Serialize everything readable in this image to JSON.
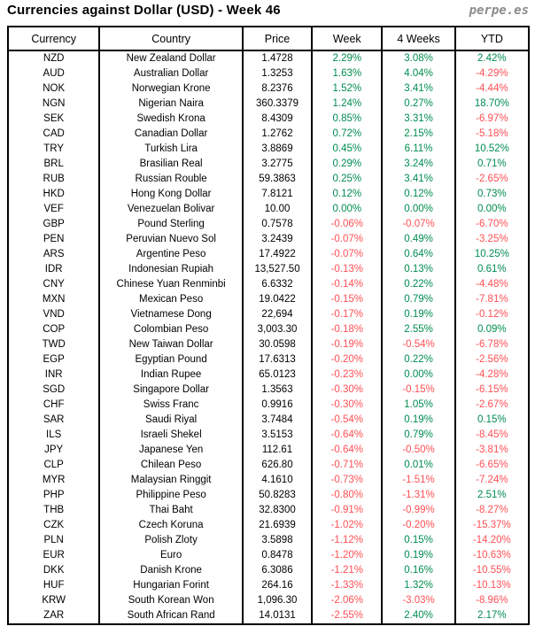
{
  "header": {
    "title": "Currencies against Dollar (USD) - Week 46",
    "logo": "perpe.es"
  },
  "colors": {
    "positive": "#008c50",
    "negative": "#ff5055",
    "text": "#000000",
    "border": "#000000",
    "logo": "#8c8c8c"
  },
  "chart_data": {
    "type": "table",
    "title": "Currencies against Dollar (USD) - Week 46",
    "columns": [
      "Currency",
      "Country",
      "Price",
      "Week",
      "4 Weeks",
      "YTD"
    ],
    "rows": [
      [
        "NZD",
        "New Zealand Dollar",
        "1.4728",
        "2.29%",
        "3.08%",
        "2.42%"
      ],
      [
        "AUD",
        "Australian Dollar",
        "1.3253",
        "1.63%",
        "4.04%",
        "-4.29%"
      ],
      [
        "NOK",
        "Norwegian Krone",
        "8.2376",
        "1.52%",
        "3.41%",
        "-4.44%"
      ],
      [
        "NGN",
        "Nigerian Naira",
        "360.3379",
        "1.24%",
        "0.27%",
        "18.70%"
      ],
      [
        "SEK",
        "Swedish Krona",
        "8.4309",
        "0.85%",
        "3.31%",
        "-6.97%"
      ],
      [
        "CAD",
        "Canadian Dollar",
        "1.2762",
        "0.72%",
        "2.15%",
        "-5.18%"
      ],
      [
        "TRY",
        "Turkish Lira",
        "3.8869",
        "0.45%",
        "6.11%",
        "10.52%"
      ],
      [
        "BRL",
        "Brasilian Real",
        "3.2775",
        "0.29%",
        "3.24%",
        "0.71%"
      ],
      [
        "RUB",
        "Russian Rouble",
        "59.3863",
        "0.25%",
        "3.41%",
        "-2.65%"
      ],
      [
        "HKD",
        "Hong Kong Dollar",
        "7.8121",
        "0.12%",
        "0.12%",
        "0.73%"
      ],
      [
        "VEF",
        "Venezuelan Bolivar",
        "10.00",
        "0.00%",
        "0.00%",
        "0.00%"
      ],
      [
        "GBP",
        "Pound Sterling",
        "0.7578",
        "-0.06%",
        "-0.07%",
        "-6.70%"
      ],
      [
        "PEN",
        "Peruvian Nuevo Sol",
        "3.2439",
        "-0.07%",
        "0.49%",
        "-3.25%"
      ],
      [
        "ARS",
        "Argentine Peso",
        "17.4922",
        "-0.07%",
        "0.64%",
        "10.25%"
      ],
      [
        "IDR",
        "Indonesian Rupiah",
        "13,527.50",
        "-0.13%",
        "0.13%",
        "0.61%"
      ],
      [
        "CNY",
        "Chinese Yuan Renminbi",
        "6.6332",
        "-0.14%",
        "0.22%",
        "-4.48%"
      ],
      [
        "MXN",
        "Mexican Peso",
        "19.0422",
        "-0.15%",
        "0.79%",
        "-7.81%"
      ],
      [
        "VND",
        "Vietnamese Dong",
        "22,694",
        "-0.17%",
        "0.19%",
        "-0.12%"
      ],
      [
        "COP",
        "Colombian Peso",
        "3,003.30",
        "-0.18%",
        "2.55%",
        "0.09%"
      ],
      [
        "TWD",
        "New Taiwan Dollar",
        "30.0598",
        "-0.19%",
        "-0.54%",
        "-6.78%"
      ],
      [
        "EGP",
        "Egyptian Pound",
        "17.6313",
        "-0.20%",
        "0.22%",
        "-2.56%"
      ],
      [
        "INR",
        "Indian Rupee",
        "65.0123",
        "-0.23%",
        "0.00%",
        "-4.28%"
      ],
      [
        "SGD",
        "Singapore Dollar",
        "1.3563",
        "-0.30%",
        "-0.15%",
        "-6.15%"
      ],
      [
        "CHF",
        "Swiss Franc",
        "0.9916",
        "-0.30%",
        "1.05%",
        "-2.67%"
      ],
      [
        "SAR",
        "Saudi Riyal",
        "3.7484",
        "-0.54%",
        "0.19%",
        "0.15%"
      ],
      [
        "ILS",
        "Israeli Shekel",
        "3.5153",
        "-0.64%",
        "0.79%",
        "-8.45%"
      ],
      [
        "JPY",
        "Japanese Yen",
        "112.61",
        "-0.64%",
        "-0.50%",
        "-3.81%"
      ],
      [
        "CLP",
        "Chilean Peso",
        "626.80",
        "-0.71%",
        "0.01%",
        "-6.65%"
      ],
      [
        "MYR",
        "Malaysian Ringgit",
        "4.1610",
        "-0.73%",
        "-1.51%",
        "-7.24%"
      ],
      [
        "PHP",
        "Philippine Peso",
        "50.8283",
        "-0.80%",
        "-1.31%",
        "2.51%"
      ],
      [
        "THB",
        "Thai Baht",
        "32.8300",
        "-0.91%",
        "-0.99%",
        "-8.27%"
      ],
      [
        "CZK",
        "Czech Koruna",
        "21.6939",
        "-1.02%",
        "-0.20%",
        "-15.37%"
      ],
      [
        "PLN",
        "Polish Zloty",
        "3.5898",
        "-1.12%",
        "0.15%",
        "-14.20%"
      ],
      [
        "EUR",
        "Euro",
        "0.8478",
        "-1.20%",
        "0.19%",
        "-10.63%"
      ],
      [
        "DKK",
        "Danish Krone",
        "6.3086",
        "-1.21%",
        "0.16%",
        "-10.55%"
      ],
      [
        "HUF",
        "Hungarian Forint",
        "264.16",
        "-1.33%",
        "1.32%",
        "-10.13%"
      ],
      [
        "KRW",
        "South Korean Won",
        "1,096.30",
        "-2.06%",
        "-3.03%",
        "-8.96%"
      ],
      [
        "ZAR",
        "South African Rand",
        "14.0131",
        "-2.55%",
        "2.40%",
        "2.17%"
      ]
    ]
  }
}
